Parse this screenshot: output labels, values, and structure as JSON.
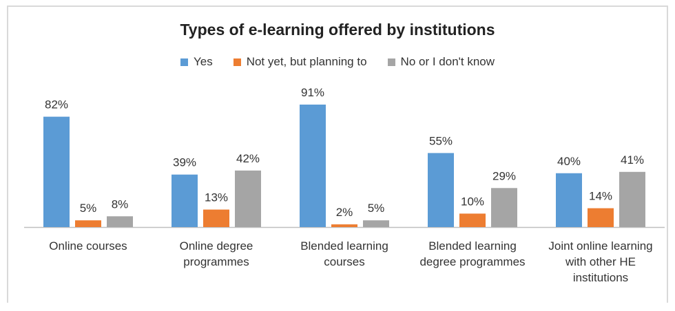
{
  "chart_data": {
    "type": "bar",
    "title": "Types of e-learning offered by institutions",
    "categories": [
      [
        "Online courses"
      ],
      [
        "Online degree",
        "programmes"
      ],
      [
        "Blended learning",
        "courses"
      ],
      [
        "Blended learning",
        "degree programmes"
      ],
      [
        "Joint online learning",
        "with other HE",
        "institutions"
      ]
    ],
    "series": [
      {
        "name": "Yes",
        "color": "#5b9bd5",
        "values": [
          82,
          39,
          91,
          55,
          40
        ]
      },
      {
        "name": "Not yet, but planning to",
        "color": "#ed7d31",
        "values": [
          5,
          13,
          2,
          10,
          14
        ]
      },
      {
        "name": "No or I don't know",
        "color": "#a5a5a5",
        "values": [
          8,
          42,
          5,
          29,
          41
        ]
      }
    ],
    "value_suffix": "%",
    "ylim": [
      0,
      100
    ],
    "legend": "top",
    "grid": false
  }
}
